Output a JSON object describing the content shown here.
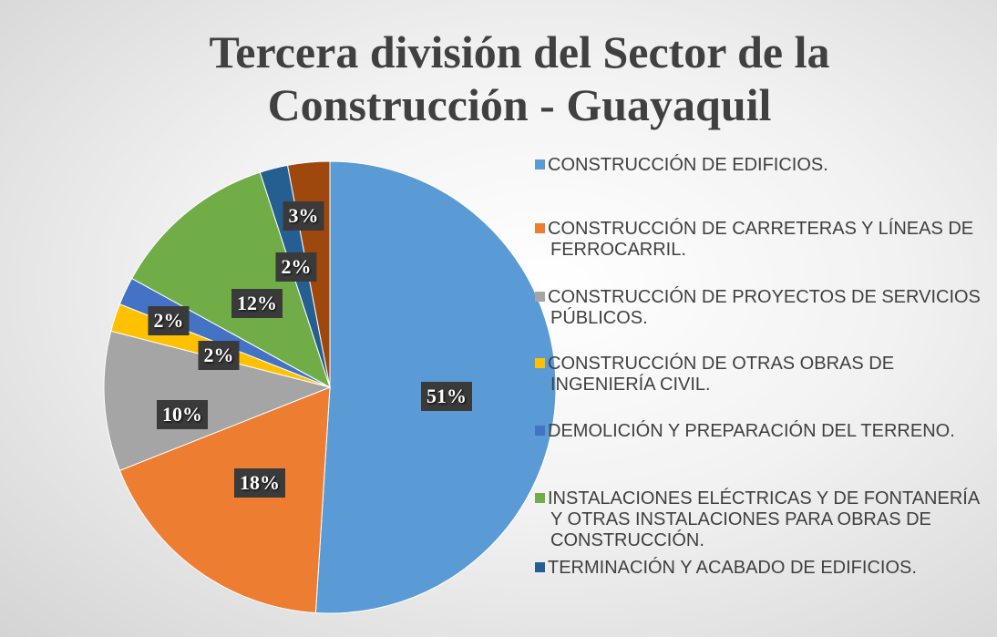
{
  "chart_data": {
    "type": "pie",
    "title": "Tercera división del Sector de la Construcción - Guayaquil",
    "categories": [
      "CONSTRUCCIÓN DE EDIFICIOS.",
      "CONSTRUCCIÓN DE CARRETERAS Y LÍNEAS DE FERROCARRIL.",
      "CONSTRUCCIÓN DE PROYECTOS DE SERVICIOS PÚBLICOS.",
      "CONSTRUCCIÓN DE OTRAS OBRAS DE INGENIERÍA CIVIL.",
      "DEMOLICIÓN Y PREPARACIÓN DEL TERRENO.",
      "INSTALACIONES ELÉCTRICAS Y DE FONTANERÍA Y OTRAS INSTALACIONES PARA OBRAS DE CONSTRUCCIÓN.",
      "TERMINACIÓN Y ACABADO DE EDIFICIOS.",
      null
    ],
    "values": [
      51,
      18,
      10,
      2,
      2,
      12,
      2,
      3
    ],
    "value_labels": [
      "51%",
      "18%",
      "10%",
      "2%",
      "2%",
      "12%",
      "2%",
      "3%"
    ],
    "colors": [
      "#5b9bd5",
      "#ed7d31",
      "#a5a5a5",
      "#ffc000",
      "#4472c4",
      "#70ad47",
      "#255e91",
      "#9e480e"
    ]
  }
}
